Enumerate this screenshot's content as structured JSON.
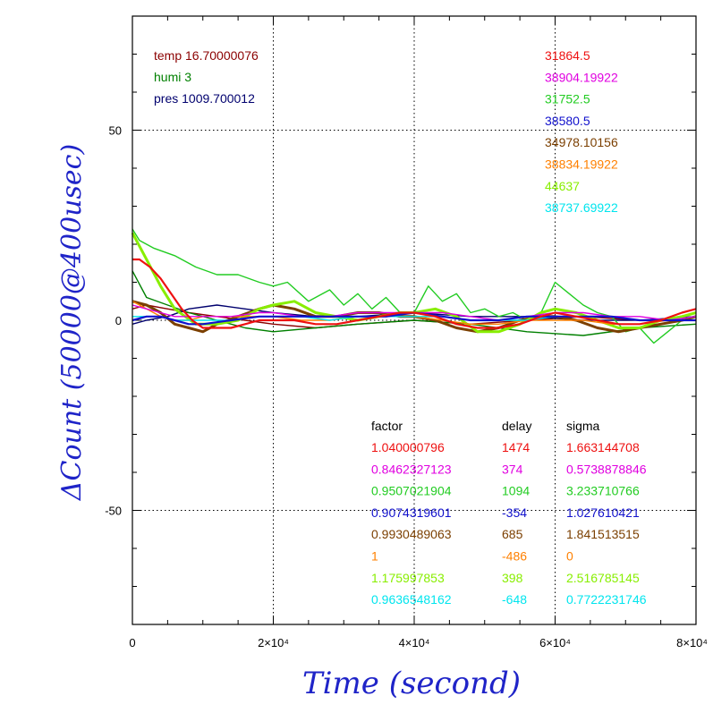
{
  "chart_data": {
    "type": "line",
    "xlabel": "Time (second)",
    "ylabel": "ΔCount (50000@400usec)",
    "xlim": [
      0,
      80000
    ],
    "ylim": [
      -80,
      80
    ],
    "grid": true,
    "x_ticks": [
      {
        "value": 0,
        "label": "0"
      },
      {
        "value": 20000,
        "label": "2×10⁴"
      },
      {
        "value": 40000,
        "label": "4×10⁴"
      },
      {
        "value": 60000,
        "label": "6×10⁴"
      },
      {
        "value": 80000,
        "label": "8×10⁴"
      }
    ],
    "y_ticks": [
      {
        "value": 50,
        "label": "50"
      },
      {
        "value": 0,
        "label": "0"
      },
      {
        "value": -50,
        "label": "-50"
      }
    ],
    "env_labels": [
      {
        "text": "temp 16.70000076",
        "color": "#8b0000"
      },
      {
        "text": "humi 3",
        "color": "#008000"
      },
      {
        "text": "pres 1009.700012",
        "color": "#00006e"
      }
    ],
    "reference_values": [
      {
        "text": "31864.5",
        "color": "#ee1111"
      },
      {
        "text": "38904.19922",
        "color": "#e000e0"
      },
      {
        "text": "31752.5",
        "color": "#22cc22"
      },
      {
        "text": "38580.5",
        "color": "#1111cc"
      },
      {
        "text": "34978.10156",
        "color": "#7b3f00"
      },
      {
        "text": "38834.19922",
        "color": "#ff8000"
      },
      {
        "text": "44637",
        "color": "#88ee00"
      },
      {
        "text": "38737.69922",
        "color": "#00e5ee"
      }
    ],
    "stats_headers": [
      "factor",
      "delay",
      "sigma"
    ],
    "stats_rows": [
      {
        "factor": "1.040000796",
        "delay": "1474",
        "sigma": "1.663144708",
        "color": "#ee1111"
      },
      {
        "factor": "0.8462327123",
        "delay": "374",
        "sigma": "0.5738878846",
        "color": "#e000e0"
      },
      {
        "factor": "0.9507021904",
        "delay": "1094",
        "sigma": "3.233710766",
        "color": "#22cc22"
      },
      {
        "factor": "0.9074319601",
        "delay": "-354",
        "sigma": "1.027610421",
        "color": "#1111cc"
      },
      {
        "factor": "0.9930489063",
        "delay": "685",
        "sigma": "1.841513515",
        "color": "#7b3f00"
      },
      {
        "factor": "1",
        "delay": "-486",
        "sigma": "0",
        "color": "#ff8000"
      },
      {
        "factor": "1.175997853",
        "delay": "398",
        "sigma": "2.516785145",
        "color": "#88ee00"
      },
      {
        "factor": "0.9636548162",
        "delay": "-648",
        "sigma": "0.7722231746",
        "color": "#00e5ee"
      }
    ],
    "series": [
      {
        "color": "#8b0000",
        "x": [
          0,
          2000,
          5000,
          8000,
          12000,
          16000,
          20000,
          26000,
          32000,
          40000,
          48000,
          56000,
          64000,
          72000,
          80000
        ],
        "y": [
          3,
          4,
          3,
          2,
          1,
          0,
          -1,
          -2,
          -1,
          0,
          -1,
          0,
          1,
          0,
          0
        ]
      },
      {
        "color": "#008000",
        "x": [
          0,
          2000,
          5000,
          8000,
          12000,
          16000,
          20000,
          26000,
          32000,
          40000,
          48000,
          56000,
          64000,
          72000,
          80000
        ],
        "y": [
          13,
          6,
          4,
          2,
          0,
          -2,
          -3,
          -2,
          -1,
          0,
          -1,
          -3,
          -4,
          -2,
          -1
        ]
      },
      {
        "color": "#00006e",
        "x": [
          0,
          2000,
          5000,
          8000,
          12000,
          16000,
          20000,
          26000,
          32000,
          40000,
          48000,
          56000,
          64000,
          72000,
          80000
        ],
        "y": [
          -1,
          0,
          1,
          3,
          4,
          3,
          2,
          1,
          1,
          2,
          1,
          1,
          0,
          0,
          1
        ]
      },
      {
        "color": "#22cc22",
        "x": [
          0,
          1000,
          3000,
          6000,
          9000,
          12000,
          15000,
          18000,
          20000,
          22000,
          25000,
          28000,
          30000,
          32000,
          34000,
          36000,
          38000,
          40000,
          42000,
          44000,
          46000,
          48000,
          50000,
          52000,
          54000,
          56000,
          58000,
          60000,
          62000,
          64000,
          66000,
          68000,
          70000,
          72000,
          74000,
          76000,
          78000,
          80000
        ],
        "y": [
          24,
          21,
          19,
          17,
          14,
          12,
          12,
          10,
          9,
          10,
          5,
          8,
          4,
          7,
          3,
          6,
          2,
          2,
          9,
          5,
          7,
          2,
          3,
          1,
          2,
          0,
          2,
          10,
          7,
          4,
          2,
          1,
          -3,
          -2,
          -6,
          -3,
          0,
          1
        ]
      },
      {
        "color": "#7b3f00",
        "x": [
          0,
          2000,
          4000,
          6000,
          8000,
          10000,
          12000,
          15000,
          18000,
          20000,
          23000,
          26000,
          29000,
          32000,
          35000,
          38000,
          40000,
          43000,
          46000,
          49000,
          52000,
          55000,
          58000,
          60000,
          63000,
          66000,
          69000,
          72000,
          75000,
          78000,
          80000
        ],
        "y": [
          5,
          4,
          2,
          -1,
          -2,
          -3,
          -1,
          1,
          3,
          4,
          3,
          1,
          1,
          2,
          2,
          1,
          1,
          0,
          -2,
          -3,
          -2,
          0,
          1,
          1,
          0,
          -2,
          -3,
          -2,
          -1,
          0,
          1
        ]
      },
      {
        "color": "#88ee00",
        "x": [
          0,
          2000,
          4000,
          6000,
          9000,
          12000,
          15000,
          18000,
          20000,
          23000,
          26000,
          29000,
          32000,
          35000,
          38000,
          40000,
          43000,
          46000,
          49000,
          52000,
          55000,
          58000,
          60000,
          63000,
          66000,
          69000,
          72000,
          75000,
          78000,
          80000
        ],
        "y": [
          23,
          16,
          9,
          3,
          -1,
          -1,
          0,
          3,
          4,
          5,
          2,
          1,
          0,
          1,
          2,
          2,
          3,
          1,
          -3,
          -3,
          -1,
          2,
          3,
          2,
          0,
          -2,
          -2,
          0,
          1,
          2
        ]
      },
      {
        "color": "#ff8000",
        "x": [
          0,
          2000,
          4000,
          6000,
          8000,
          10000,
          14000,
          18000,
          20000,
          24000,
          28000,
          32000,
          36000,
          40000,
          44000,
          48000,
          52000,
          56000,
          60000,
          64000,
          68000,
          72000,
          76000,
          80000
        ],
        "y": [
          5,
          3,
          1,
          0,
          0,
          1,
          1,
          1,
          1,
          0,
          0,
          1,
          1,
          1,
          0,
          -1,
          -1,
          0,
          0,
          0,
          -1,
          -1,
          0,
          1
        ]
      },
      {
        "color": "#00e5ee",
        "x": [
          0,
          2000,
          4000,
          6000,
          8000,
          10000,
          14000,
          18000,
          20000,
          24000,
          28000,
          32000,
          36000,
          40000,
          44000,
          48000,
          52000,
          56000,
          60000,
          64000,
          68000,
          72000,
          76000,
          80000
        ],
        "y": [
          1,
          1,
          1,
          0,
          0,
          0,
          0,
          1,
          1,
          1,
          0,
          1,
          1,
          1,
          1,
          0,
          0,
          0,
          1,
          1,
          1,
          0,
          0,
          1
        ]
      },
      {
        "color": "#e000e0",
        "x": [
          0,
          2000,
          4000,
          6000,
          8000,
          10000,
          14000,
          18000,
          20000,
          24000,
          28000,
          32000,
          36000,
          40000,
          44000,
          48000,
          52000,
          56000,
          60000,
          64000,
          68000,
          72000,
          76000,
          80000
        ],
        "y": [
          4,
          3,
          2,
          1,
          1,
          1,
          1,
          2,
          2,
          1,
          1,
          2,
          2,
          2,
          2,
          1,
          0,
          1,
          2,
          2,
          1,
          1,
          0,
          1
        ]
      },
      {
        "color": "#1111cc",
        "x": [
          0,
          2000,
          4000,
          6000,
          8000,
          10000,
          14000,
          18000,
          20000,
          24000,
          28000,
          32000,
          36000,
          40000,
          44000,
          48000,
          52000,
          56000,
          60000,
          64000,
          68000,
          72000,
          76000,
          80000
        ],
        "y": [
          0,
          1,
          1,
          0,
          -1,
          -1,
          0,
          1,
          1,
          1,
          1,
          1,
          1,
          2,
          1,
          0,
          0,
          1,
          1,
          1,
          1,
          0,
          0,
          0
        ]
      },
      {
        "color": "#ee1111",
        "x": [
          0,
          1000,
          2500,
          4000,
          5500,
          7000,
          8500,
          10000,
          12000,
          14000,
          16000,
          18000,
          20000,
          23000,
          26000,
          29000,
          32000,
          35000,
          38000,
          40000,
          43000,
          46000,
          49000,
          52000,
          55000,
          58000,
          60000,
          63000,
          66000,
          69000,
          72000,
          75000,
          78000,
          80000
        ],
        "y": [
          16,
          16,
          14,
          11,
          7,
          3,
          0,
          -2,
          -2,
          -2,
          -1,
          0,
          0,
          0,
          -1,
          -1,
          0,
          1,
          2,
          2,
          1,
          -1,
          -2,
          -2,
          -1,
          1,
          2,
          1,
          0,
          -1,
          -1,
          0,
          2,
          3
        ]
      }
    ]
  }
}
